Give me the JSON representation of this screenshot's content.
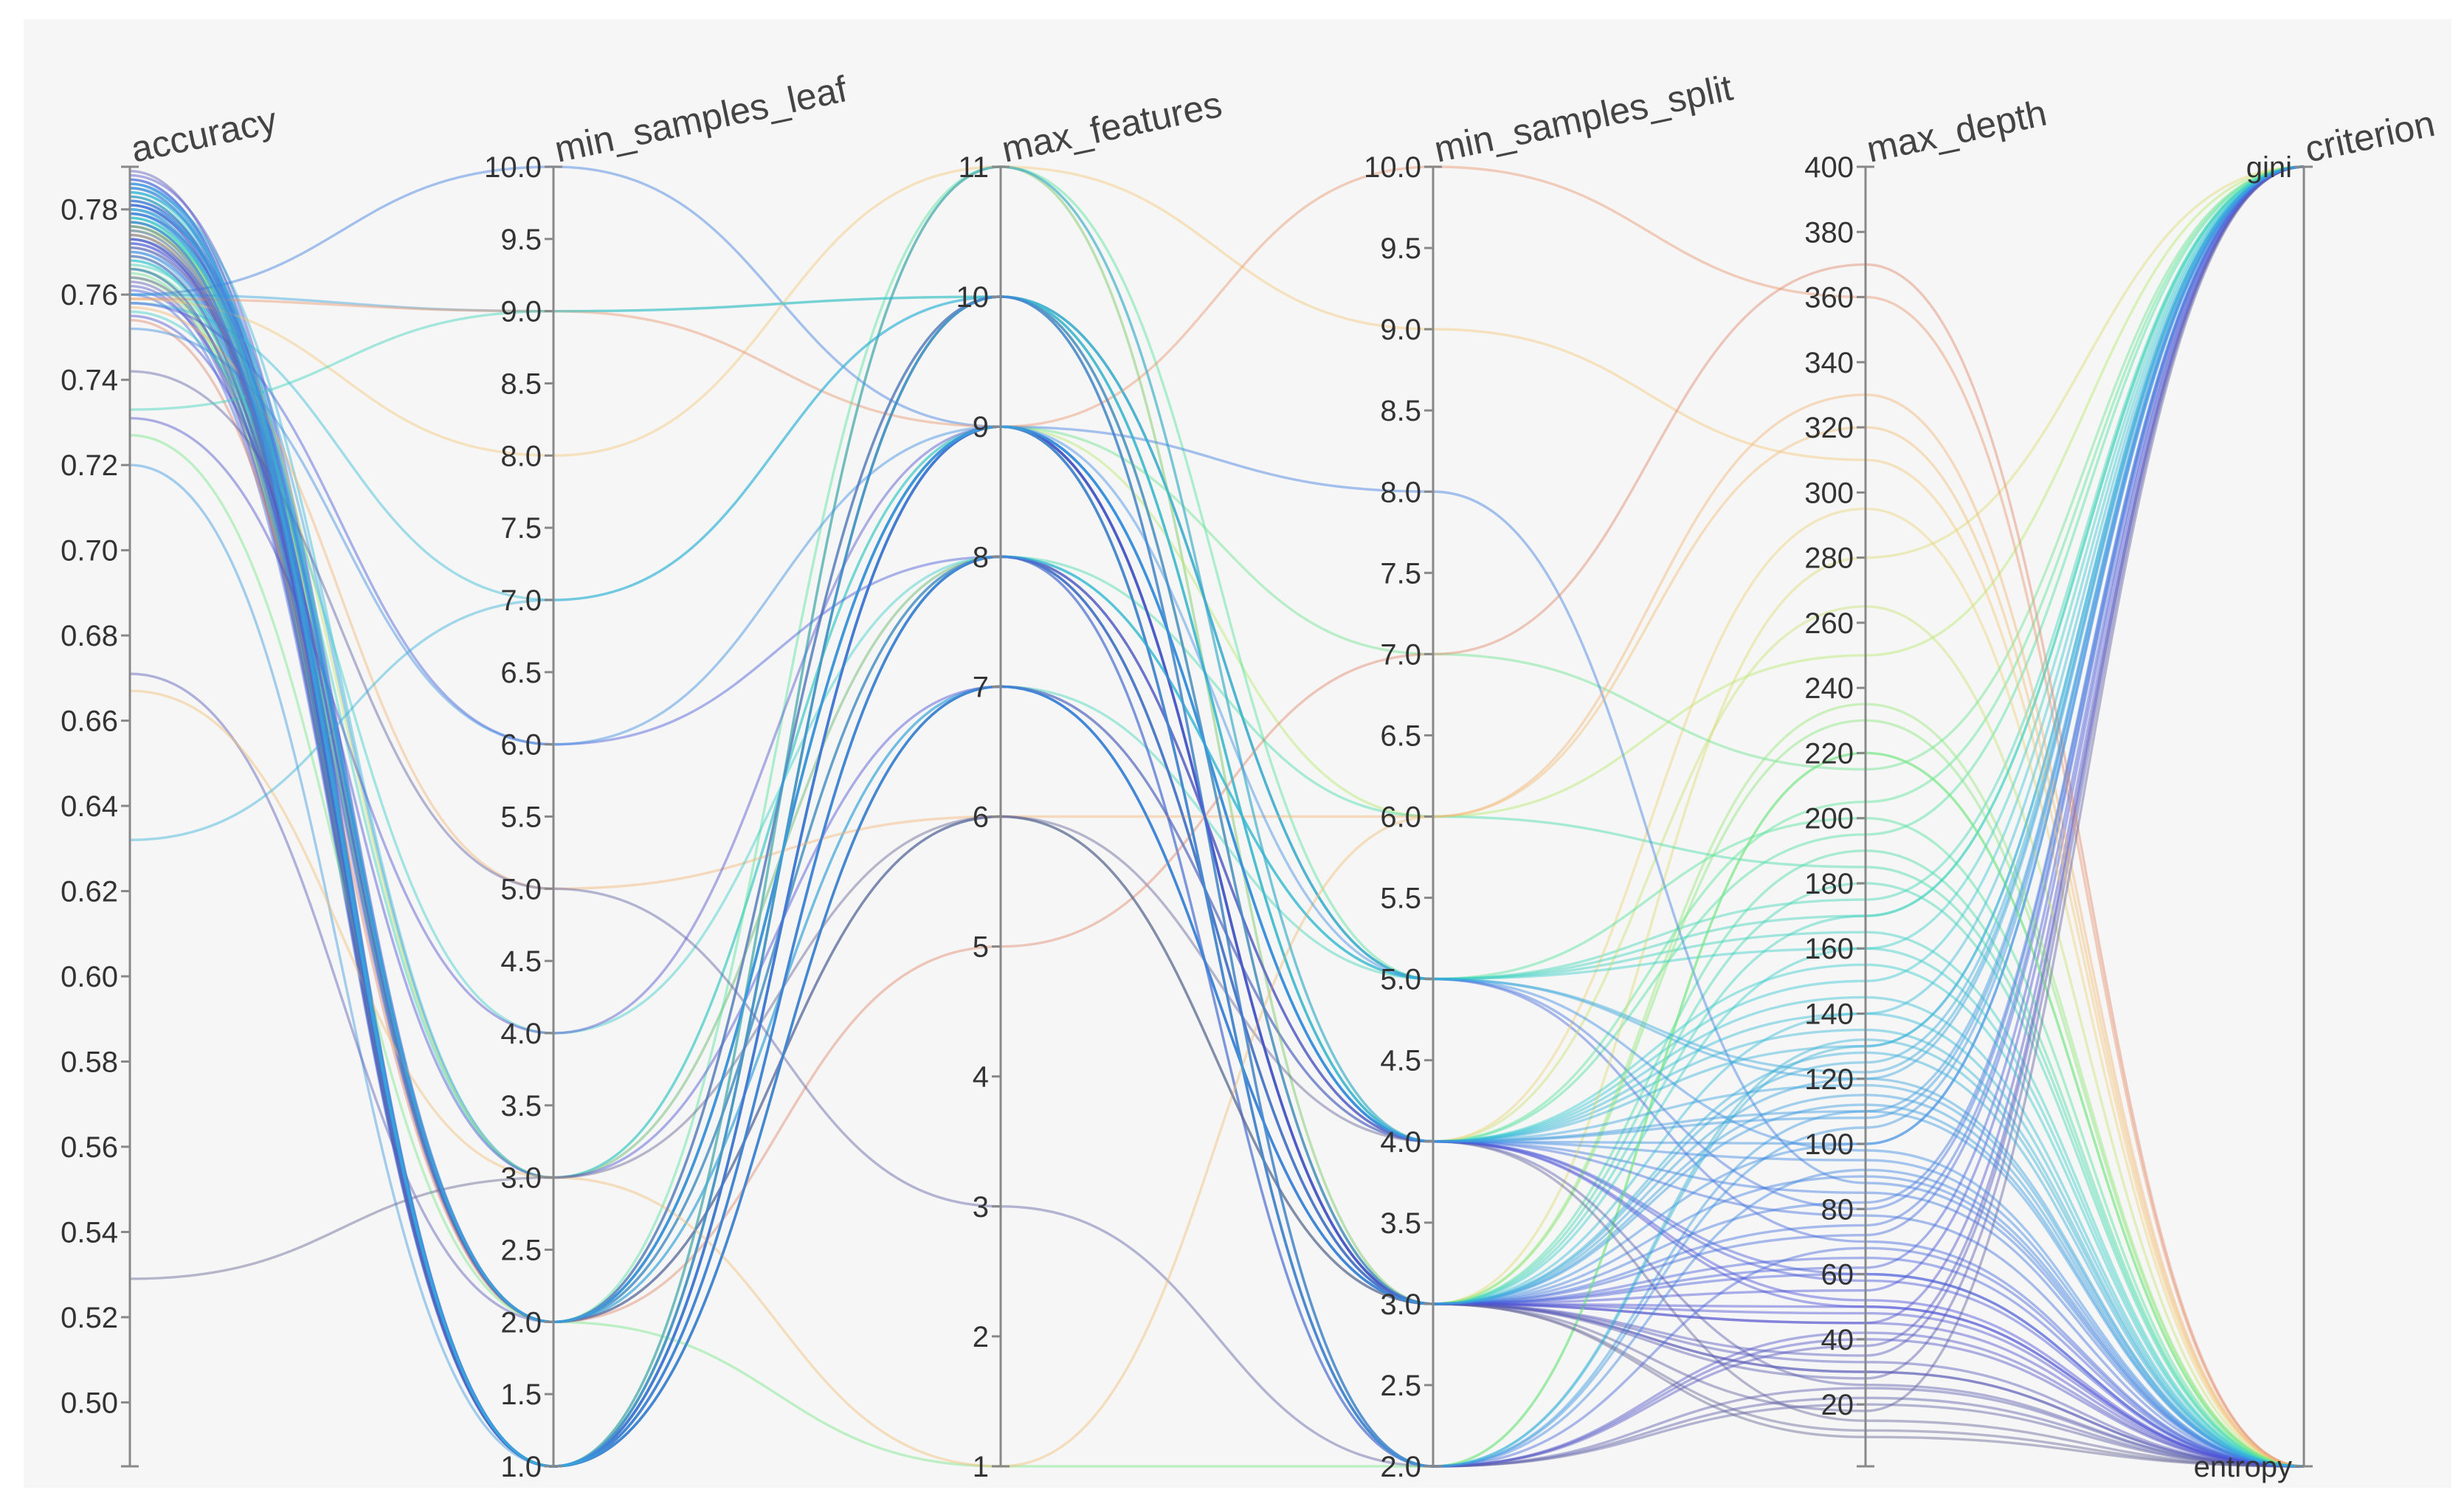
{
  "chart_data": {
    "type": "parallel_coordinates",
    "title": "",
    "color_by": "max_depth",
    "colorscale": [
      "#6c6c86",
      "#4b4fd6",
      "#3b8fe3",
      "#35c9d2",
      "#4fe39a",
      "#b6ea6c",
      "#f4d07a",
      "#f0a372",
      "#c96262"
    ],
    "axes": [
      {
        "name": "accuracy",
        "range": [
          0.485,
          0.79
        ],
        "ticks": [
          "0.50",
          "0.52",
          "0.54",
          "0.56",
          "0.58",
          "0.60",
          "0.62",
          "0.64",
          "0.66",
          "0.68",
          "0.70",
          "0.72",
          "0.74",
          "0.76",
          "0.78"
        ],
        "tick_values": [
          0.5,
          0.52,
          0.54,
          0.56,
          0.58,
          0.6,
          0.62,
          0.64,
          0.66,
          0.68,
          0.7,
          0.72,
          0.74,
          0.76,
          0.78
        ]
      },
      {
        "name": "min_samples_leaf",
        "range": [
          1,
          10
        ],
        "ticks": [
          "1.0",
          "1.5",
          "2.0",
          "2.5",
          "3.0",
          "3.5",
          "4.0",
          "4.5",
          "5.0",
          "5.5",
          "6.0",
          "6.5",
          "7.0",
          "7.5",
          "8.0",
          "8.5",
          "9.0",
          "9.5",
          "10.0"
        ],
        "tick_values": [
          1,
          1.5,
          2,
          2.5,
          3,
          3.5,
          4,
          4.5,
          5,
          5.5,
          6,
          6.5,
          7,
          7.5,
          8,
          8.5,
          9,
          9.5,
          10
        ]
      },
      {
        "name": "max_features",
        "range": [
          1,
          11
        ],
        "ticks": [
          "1",
          "2",
          "3",
          "4",
          "5",
          "6",
          "7",
          "8",
          "9",
          "10",
          "11"
        ],
        "tick_values": [
          1,
          2,
          3,
          4,
          5,
          6,
          7,
          8,
          9,
          10,
          11
        ]
      },
      {
        "name": "min_samples_split",
        "range": [
          2,
          10
        ],
        "ticks": [
          "2.0",
          "2.5",
          "3.0",
          "3.5",
          "4.0",
          "4.5",
          "5.0",
          "5.5",
          "6.0",
          "6.5",
          "7.0",
          "7.5",
          "8.0",
          "8.5",
          "9.0",
          "9.5",
          "10.0"
        ],
        "tick_values": [
          2,
          2.5,
          3,
          3.5,
          4,
          4.5,
          5,
          5.5,
          6,
          6.5,
          7,
          7.5,
          8,
          8.5,
          9,
          9.5,
          10
        ]
      },
      {
        "name": "max_depth",
        "range": [
          1,
          400
        ],
        "ticks": [
          "20",
          "40",
          "60",
          "80",
          "100",
          "120",
          "140",
          "160",
          "180",
          "200",
          "220",
          "240",
          "260",
          "280",
          "300",
          "320",
          "340",
          "360",
          "380",
          "400"
        ],
        "tick_values": [
          20,
          40,
          60,
          80,
          100,
          120,
          140,
          160,
          180,
          200,
          220,
          240,
          260,
          280,
          300,
          320,
          340,
          360,
          380,
          400
        ]
      },
      {
        "name": "criterion",
        "range": [
          0,
          1
        ],
        "ticks": [
          "entropy",
          "gini"
        ],
        "tick_values": [
          0,
          1
        ]
      }
    ],
    "records": [
      [
        0.789,
        1,
        9,
        3,
        30,
        0
      ],
      [
        0.788,
        2,
        9,
        3,
        45,
        1
      ],
      [
        0.787,
        1,
        8,
        4,
        60,
        0
      ],
      [
        0.787,
        1,
        9,
        3,
        75,
        1
      ],
      [
        0.786,
        2,
        10,
        3,
        90,
        0
      ],
      [
        0.786,
        1,
        9,
        2,
        105,
        1
      ],
      [
        0.785,
        1,
        7,
        3,
        120,
        0
      ],
      [
        0.785,
        3,
        9,
        4,
        135,
        0
      ],
      [
        0.784,
        1,
        10,
        4,
        150,
        1
      ],
      [
        0.784,
        2,
        8,
        5,
        165,
        0
      ],
      [
        0.783,
        1,
        9,
        3,
        180,
        0
      ],
      [
        0.783,
        1,
        11,
        4,
        195,
        1
      ],
      [
        0.782,
        2,
        9,
        2,
        40,
        0
      ],
      [
        0.782,
        1,
        8,
        3,
        55,
        1
      ],
      [
        0.781,
        1,
        10,
        5,
        70,
        0
      ],
      [
        0.781,
        2,
        7,
        4,
        85,
        0
      ],
      [
        0.78,
        1,
        9,
        3,
        100,
        1
      ],
      [
        0.78,
        3,
        8,
        3,
        115,
        0
      ],
      [
        0.779,
        1,
        10,
        2,
        130,
        1
      ],
      [
        0.779,
        2,
        9,
        4,
        145,
        0
      ],
      [
        0.778,
        1,
        11,
        3,
        160,
        0
      ],
      [
        0.778,
        1,
        7,
        5,
        175,
        1
      ],
      [
        0.777,
        2,
        8,
        3,
        190,
        0
      ],
      [
        0.777,
        1,
        9,
        4,
        205,
        1
      ],
      [
        0.776,
        1,
        10,
        2,
        220,
        0
      ],
      [
        0.776,
        2,
        6,
        3,
        235,
        0
      ],
      [
        0.775,
        1,
        9,
        6,
        250,
        1
      ],
      [
        0.775,
        3,
        8,
        4,
        265,
        0
      ],
      [
        0.774,
        1,
        11,
        3,
        280,
        1
      ],
      [
        0.774,
        2,
        10,
        4,
        295,
        0
      ],
      [
        0.773,
        1,
        9,
        2,
        25,
        0
      ],
      [
        0.773,
        1,
        7,
        3,
        35,
        1
      ],
      [
        0.772,
        2,
        8,
        4,
        50,
        0
      ],
      [
        0.772,
        1,
        9,
        3,
        65,
        0
      ],
      [
        0.771,
        1,
        10,
        5,
        80,
        1
      ],
      [
        0.77,
        2,
        9,
        4,
        95,
        0
      ],
      [
        0.77,
        1,
        8,
        2,
        110,
        0
      ],
      [
        0.769,
        1,
        9,
        3,
        125,
        1
      ],
      [
        0.768,
        2,
        7,
        3,
        140,
        0
      ],
      [
        0.768,
        1,
        10,
        4,
        155,
        0
      ],
      [
        0.767,
        3,
        9,
        3,
        170,
        1
      ],
      [
        0.766,
        1,
        8,
        6,
        185,
        0
      ],
      [
        0.766,
        2,
        11,
        5,
        200,
        0
      ],
      [
        0.765,
        1,
        9,
        7,
        215,
        1
      ],
      [
        0.764,
        1,
        10,
        3,
        230,
        0
      ],
      [
        0.764,
        2,
        6,
        4,
        15,
        0
      ],
      [
        0.763,
        1,
        9,
        3,
        28,
        1
      ],
      [
        0.762,
        1,
        8,
        2,
        42,
        0
      ],
      [
        0.761,
        2,
        9,
        4,
        58,
        0
      ],
      [
        0.76,
        1,
        7,
        3,
        72,
        1
      ],
      [
        0.76,
        10,
        9,
        8,
        88,
        0
      ],
      [
        0.76,
        9,
        10,
        5,
        120,
        1
      ],
      [
        0.759,
        8,
        11,
        9,
        310,
        0
      ],
      [
        0.759,
        9,
        9,
        10,
        360,
        0
      ],
      [
        0.758,
        7,
        10,
        4,
        140,
        1
      ],
      [
        0.758,
        6,
        8,
        3,
        60,
        0
      ],
      [
        0.757,
        5,
        6,
        6,
        330,
        0
      ],
      [
        0.756,
        4,
        8,
        5,
        160,
        1
      ],
      [
        0.755,
        3,
        7,
        3,
        50,
        0
      ],
      [
        0.754,
        2,
        5,
        7,
        370,
        0
      ],
      [
        0.752,
        6,
        9,
        4,
        100,
        1
      ],
      [
        0.742,
        5,
        3,
        2,
        20,
        0
      ],
      [
        0.733,
        9,
        10,
        5,
        170,
        1
      ],
      [
        0.731,
        4,
        9,
        3,
        45,
        0
      ],
      [
        0.727,
        2,
        1,
        2,
        220,
        0
      ],
      [
        0.72,
        1,
        9,
        4,
        110,
        1
      ],
      [
        0.671,
        2,
        6,
        3,
        30,
        0
      ],
      [
        0.667,
        3,
        1,
        6,
        320,
        0
      ],
      [
        0.632,
        7,
        10,
        4,
        130,
        1
      ],
      [
        0.529,
        3,
        6,
        3,
        10,
        0
      ],
      [
        0.776,
        1,
        8,
        3,
        12,
        0
      ],
      [
        0.774,
        1,
        9,
        2,
        22,
        0
      ],
      [
        0.771,
        2,
        10,
        3,
        18,
        1
      ],
      [
        0.769,
        1,
        7,
        4,
        26,
        0
      ],
      [
        0.766,
        1,
        9,
        3,
        33,
        0
      ],
      [
        0.781,
        1,
        10,
        2,
        38,
        1
      ],
      [
        0.779,
        2,
        9,
        3,
        48,
        0
      ],
      [
        0.777,
        1,
        8,
        4,
        52,
        0
      ],
      [
        0.775,
        1,
        7,
        3,
        62,
        1
      ],
      [
        0.773,
        2,
        9,
        2,
        68,
        0
      ],
      [
        0.785,
        1,
        9,
        4,
        78,
        0
      ],
      [
        0.783,
        1,
        8,
        3,
        82,
        1
      ],
      [
        0.781,
        2,
        10,
        2,
        92,
        0
      ],
      [
        0.779,
        1,
        9,
        5,
        98,
        0
      ],
      [
        0.777,
        1,
        11,
        4,
        108,
        1
      ],
      [
        0.786,
        1,
        10,
        3,
        112,
        0
      ],
      [
        0.784,
        2,
        9,
        4,
        118,
        0
      ],
      [
        0.782,
        1,
        8,
        5,
        122,
        1
      ],
      [
        0.78,
        1,
        7,
        3,
        128,
        0
      ],
      [
        0.778,
        2,
        9,
        2,
        132,
        0
      ]
    ]
  }
}
